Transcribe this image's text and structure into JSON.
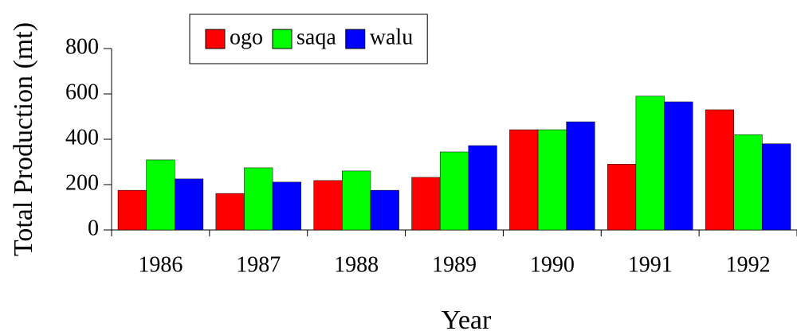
{
  "chart_data": {
    "type": "bar",
    "x_label": "Year",
    "y_label": "Total Production (mt)",
    "categories": [
      "1986",
      "1987",
      "1988",
      "1989",
      "1990",
      "1991",
      "1992"
    ],
    "series": [
      {
        "name": "ogo",
        "color": "#ff0000",
        "values": [
          175,
          161,
          218,
          232,
          442,
          290,
          530
        ]
      },
      {
        "name": "saqa",
        "color": "#00ff00",
        "values": [
          309,
          274,
          260,
          344,
          442,
          590,
          420
        ]
      },
      {
        "name": "walu",
        "color": "#0000ff",
        "values": [
          225,
          211,
          175,
          372,
          477,
          565,
          380
        ]
      }
    ],
    "ylim": [
      0,
      800
    ],
    "yticks": [
      0,
      200,
      400,
      600,
      800
    ],
    "legend": "top"
  }
}
